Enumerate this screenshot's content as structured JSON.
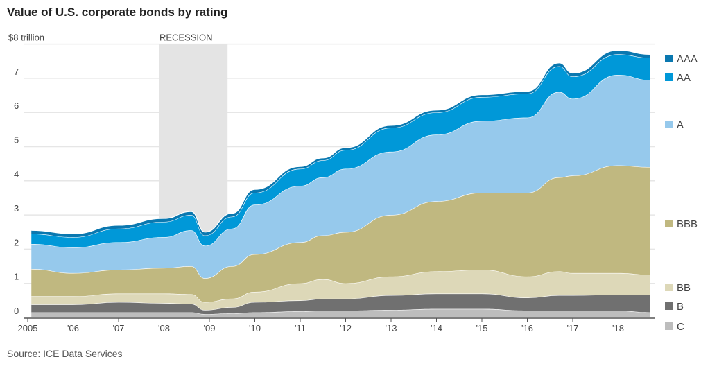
{
  "chart_data": {
    "type": "area",
    "stacked": true,
    "title": "Value of U.S. corporate bonds by rating",
    "y_unit_label": "$8 trillion",
    "ylim": [
      0,
      8
    ],
    "yticks": [
      0,
      1,
      2,
      3,
      4,
      5,
      6,
      7,
      8
    ],
    "ytick_labels": [
      "0",
      "1",
      "2",
      "3",
      "4",
      "5",
      "6",
      "7",
      "$8 trillion"
    ],
    "xlim": [
      2005,
      2018.9
    ],
    "xticks": [
      2005,
      2006,
      2007,
      2008,
      2009,
      2010,
      2011,
      2012,
      2013,
      2014,
      2015,
      2016,
      2017,
      2018
    ],
    "xtick_labels": [
      "2005",
      "'06",
      "'07",
      "'08",
      "'09",
      "'10",
      "'11",
      "'12",
      "'13",
      "'14",
      "'15",
      "'16",
      "'17",
      "'18"
    ],
    "grid": true,
    "legend_placement": "right",
    "annotation": {
      "label": "RECESSION",
      "x_start": 2007.9,
      "x_end": 2009.4,
      "color": "#e4e4e4"
    },
    "x": [
      2005.08,
      2006,
      2007,
      2008,
      2008.6,
      2008.9,
      2009.5,
      2010,
      2011,
      2011.5,
      2012,
      2013,
      2014,
      2015,
      2016,
      2016.7,
      2017,
      2018,
      2018.7
    ],
    "series": [
      {
        "name": "C",
        "color": "#bdbdbd",
        "values": [
          0.15,
          0.15,
          0.15,
          0.15,
          0.15,
          0.1,
          0.12,
          0.15,
          0.18,
          0.2,
          0.2,
          0.22,
          0.25,
          0.25,
          0.2,
          0.2,
          0.2,
          0.2,
          0.15
        ]
      },
      {
        "name": "B",
        "color": "#707070",
        "values": [
          0.23,
          0.23,
          0.3,
          0.27,
          0.25,
          0.12,
          0.18,
          0.3,
          0.32,
          0.35,
          0.35,
          0.43,
          0.45,
          0.45,
          0.38,
          0.45,
          0.45,
          0.47,
          0.52
        ]
      },
      {
        "name": "BB",
        "color": "#ddd8b8",
        "values": [
          0.24,
          0.24,
          0.25,
          0.28,
          0.28,
          0.23,
          0.25,
          0.3,
          0.5,
          0.57,
          0.45,
          0.55,
          0.65,
          0.7,
          0.62,
          0.7,
          0.65,
          0.63,
          0.58
        ]
      },
      {
        "name": "BBB",
        "color": "#c0b880",
        "values": [
          0.8,
          0.68,
          0.7,
          0.75,
          0.82,
          0.7,
          0.95,
          1.1,
          1.2,
          1.28,
          1.5,
          1.8,
          2.05,
          2.25,
          2.45,
          2.75,
          2.85,
          3.15,
          3.15
        ]
      },
      {
        "name": "A",
        "color": "#96c9ec",
        "values": [
          0.73,
          0.75,
          0.8,
          0.9,
          1.05,
          0.95,
          1.1,
          1.45,
          1.65,
          1.7,
          1.85,
          1.85,
          1.95,
          2.1,
          2.2,
          2.5,
          2.25,
          2.65,
          2.55
        ]
      },
      {
        "name": "AA",
        "color": "#0098d8",
        "values": [
          0.3,
          0.3,
          0.4,
          0.45,
          0.45,
          0.3,
          0.35,
          0.35,
          0.5,
          0.5,
          0.55,
          0.7,
          0.65,
          0.7,
          0.7,
          0.75,
          0.65,
          0.6,
          0.65
        ]
      },
      {
        "name": "AAA",
        "color": "#0a78b0",
        "values": [
          0.1,
          0.1,
          0.1,
          0.1,
          0.1,
          0.1,
          0.1,
          0.1,
          0.07,
          0.07,
          0.07,
          0.07,
          0.07,
          0.07,
          0.07,
          0.1,
          0.1,
          0.12,
          0.1
        ]
      }
    ],
    "source": "Source: ICE Data Services"
  }
}
